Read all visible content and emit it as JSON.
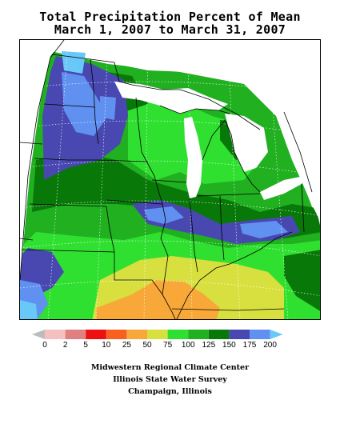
{
  "title": {
    "line1": "Total Precipitation Percent of Mean",
    "line2": "March 1, 2007 to March 31, 2007"
  },
  "map": {
    "region": "Midwest United States",
    "grid_visible": true,
    "colors": {
      "water": "#ffffff",
      "outside": "#ffffff",
      "boundaries": "#000000",
      "grid": "#ffffff"
    }
  },
  "legend": {
    "ticks": [
      "0",
      "2",
      "5",
      "10",
      "25",
      "50",
      "75",
      "100",
      "125",
      "150",
      "175",
      "200"
    ],
    "bins": [
      {
        "label": "<0",
        "color": "#bcbcbc"
      },
      {
        "label": "0-2",
        "color": "#f6c0c0"
      },
      {
        "label": "2-5",
        "color": "#e08080"
      },
      {
        "label": "5-10",
        "color": "#ee1010"
      },
      {
        "label": "10-25",
        "color": "#f86020"
      },
      {
        "label": "25-50",
        "color": "#f8a838"
      },
      {
        "label": "50-75",
        "color": "#d8e040"
      },
      {
        "label": "75-100",
        "color": "#30e030"
      },
      {
        "label": "100-125",
        "color": "#20b020"
      },
      {
        "label": "125-150",
        "color": "#087808"
      },
      {
        "label": "150-175",
        "color": "#4848b0"
      },
      {
        "label": "175-200",
        "color": "#6090f0"
      },
      {
        "label": ">200",
        "color": "#68c8f8"
      }
    ]
  },
  "credits": {
    "line1": "Midwestern Regional Climate Center",
    "line2": "Illinois State Water Survey",
    "line3": "Champaign, Illinois"
  }
}
